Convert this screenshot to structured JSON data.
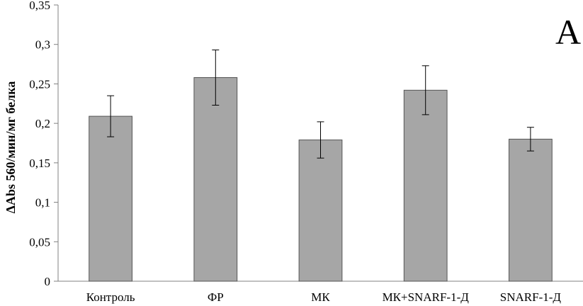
{
  "chart_data": {
    "type": "bar",
    "ylabel": "ΔAbs 560/мин/мг белка",
    "panel_label": "A",
    "categories": [
      "Контроль",
      "ФР",
      "МК",
      "МК+SNARF-1-Д",
      "SNARF-1-Д"
    ],
    "values": [
      0.209,
      0.258,
      0.179,
      0.242,
      0.18
    ],
    "errors": [
      0.026,
      0.035,
      0.023,
      0.031,
      0.015
    ],
    "ylim": [
      0,
      0.35
    ],
    "yticks": [
      {
        "value": 0,
        "label": "0"
      },
      {
        "value": 0.05,
        "label": "0,05"
      },
      {
        "value": 0.1,
        "label": "0,1"
      },
      {
        "value": 0.15,
        "label": "0,15"
      },
      {
        "value": 0.2,
        "label": "0,2"
      },
      {
        "value": 0.25,
        "label": "0,25"
      },
      {
        "value": 0.3,
        "label": "0,3"
      },
      {
        "value": 0.35,
        "label": "0,35"
      }
    ],
    "grid": false,
    "legend": "none",
    "colors": {
      "bar_fill": "#a6a6a6",
      "bar_stroke": "#555555",
      "axis": "#808080",
      "error_bar": "#000000"
    }
  }
}
